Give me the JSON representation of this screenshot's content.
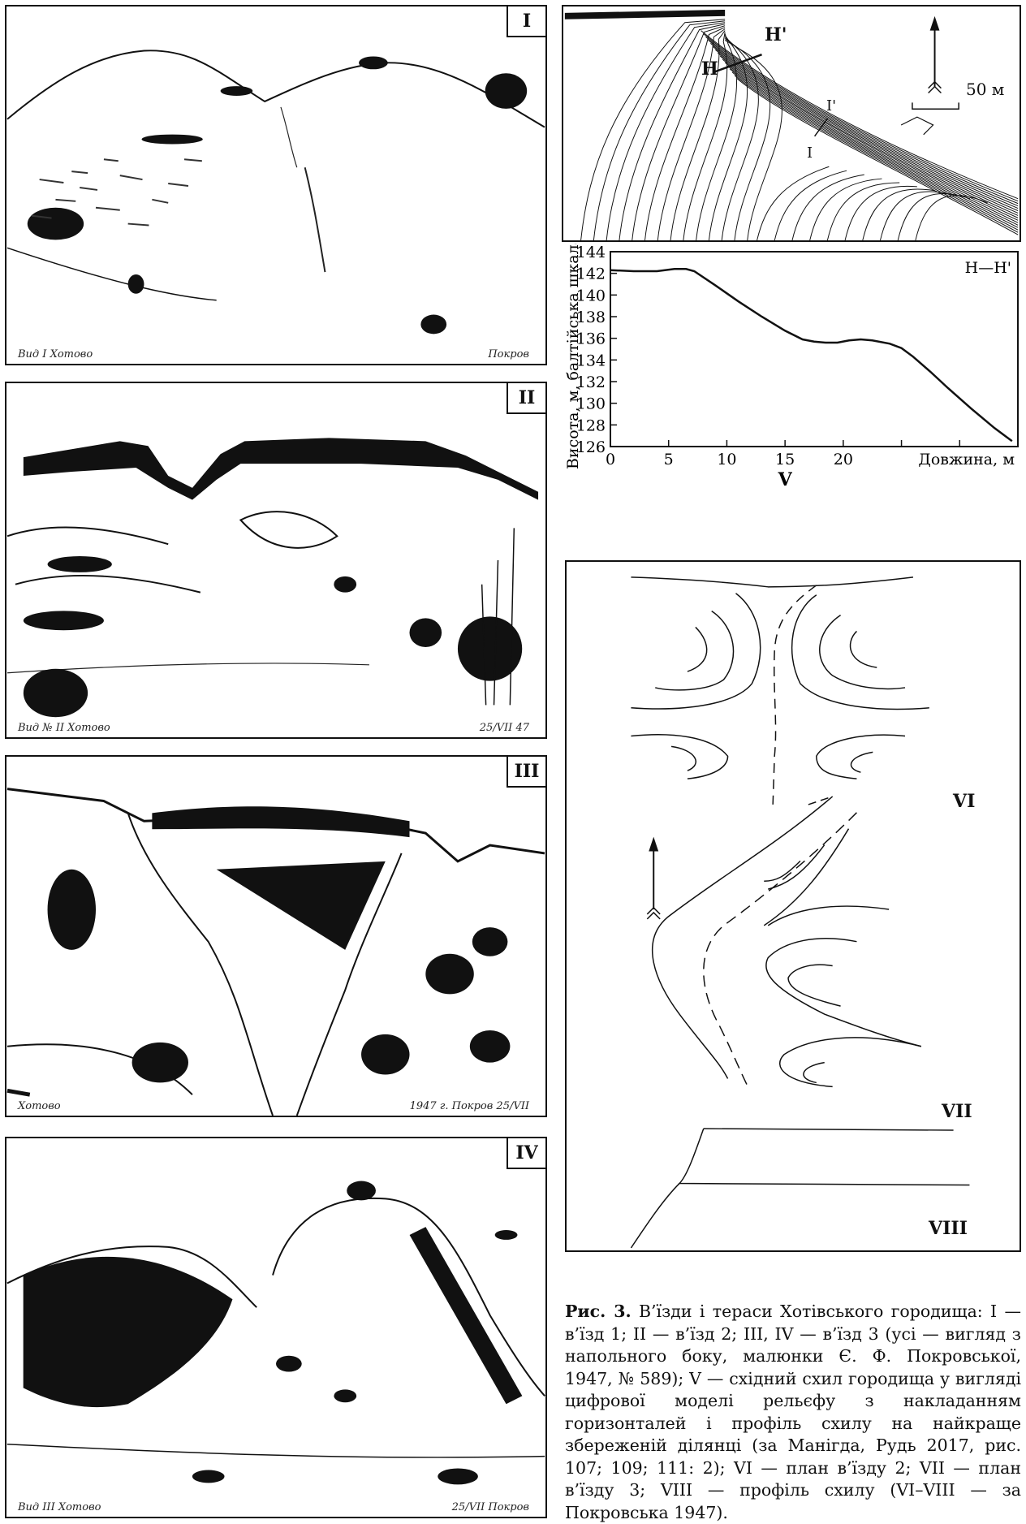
{
  "panels": {
    "p1": {
      "numeral": "I",
      "sig_left": "Вид I  Хотово",
      "sig_right": "Покров"
    },
    "p2": {
      "numeral": "II",
      "sig_left": "Вид № II  Хотово",
      "sig_right": "25/VII 47"
    },
    "p3": {
      "numeral": "III",
      "sig_left": "Хотово",
      "sig_right": "1947 г.  Покров  25/VII"
    },
    "p4": {
      "numeral": "IV",
      "sig_left": "Вид III  Хотово",
      "sig_right": "25/VII  Покров"
    }
  },
  "map": {
    "label_h": "H",
    "label_h2": "H'",
    "label_i": "I",
    "label_i2": "I'",
    "scale": "50 м"
  },
  "chart_data": {
    "type": "line",
    "title": "H—H'",
    "xlabel": "Довжина, м",
    "ylabel": "Висота, м, балтійська шкала",
    "x_ticks": [
      0,
      5,
      10,
      15,
      20
    ],
    "y_ticks": [
      126,
      128,
      130,
      132,
      134,
      136,
      138,
      140,
      142,
      144
    ],
    "xlim": [
      0,
      35
    ],
    "ylim": [
      126,
      144
    ],
    "panel_label": "V",
    "series": [
      {
        "x": [
          0,
          2,
          4,
          5.5,
          6.5,
          7.2,
          9,
          11,
          13,
          15,
          16.5,
          17.5,
          18.5,
          19.5,
          20.5,
          21.5,
          22.5,
          24,
          25,
          26,
          27.5,
          29,
          31,
          33,
          34.5
        ],
        "y": [
          142.3,
          142.2,
          142.2,
          142.4,
          142.4,
          142.2,
          140.9,
          139.4,
          138.0,
          136.7,
          135.9,
          135.7,
          135.6,
          135.6,
          135.8,
          135.9,
          135.8,
          135.5,
          135.1,
          134.3,
          132.9,
          131.4,
          129.5,
          127.7,
          126.5
        ]
      }
    ]
  },
  "plans": {
    "vi": "VI",
    "vii": "VII",
    "viii": "VIII"
  },
  "caption": {
    "label": "Рис. 3.",
    "text": "В’їзди і тераси Хотівського городища: I — в’їзд 1; II — в’їзд 2; III, IV — в’їзд 3 (усі — вигляд з напольного боку, малюнки Є. Ф. Покровської, 1947, № 589); V — східний схил городища у вигляді цифрової моделі рельєфу з накладанням горизонталей і профіль схилу на найкраще збереженій ділянці (за Манігда, Рудь 2017, рис. 107; 109; 111: 2); VI — план в’їзду 2; VII — план в’їзду 3; VIII — профіль схилу (VI–VIII — за Покровська 1947)."
  }
}
